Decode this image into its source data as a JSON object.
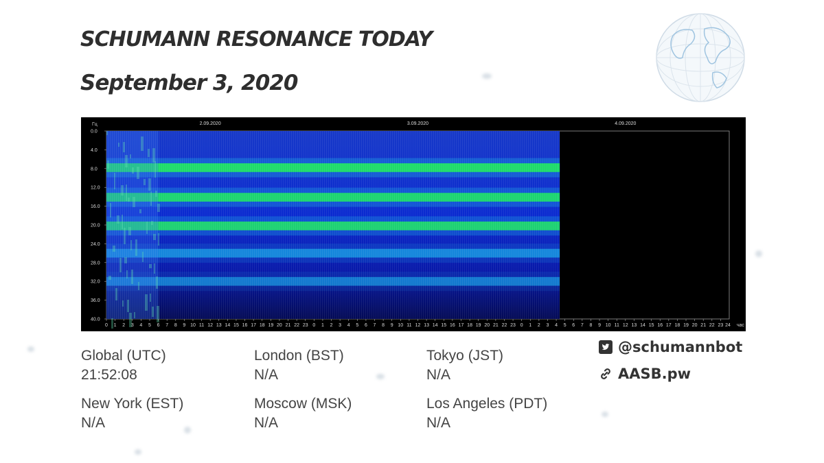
{
  "header": {
    "title": "SCHUMANN RESONANCE TODAY",
    "date": "September 3, 2020"
  },
  "timezones": [
    {
      "label": "Global (UTC)",
      "value": "21:52:08"
    },
    {
      "label": "London (BST)",
      "value": "N/A"
    },
    {
      "label": "Tokyo (JST)",
      "value": "N/A"
    },
    {
      "label": "New York (EST)",
      "value": "N/A"
    },
    {
      "label": "Moscow (MSK)",
      "value": "N/A"
    },
    {
      "label": "Los Angeles (PDT)",
      "value": "N/A"
    }
  ],
  "social": {
    "twitter_handle": "@schumannbot",
    "twitter_icon": "twitter-icon",
    "website": "AASB.pw",
    "website_icon": "link-icon"
  },
  "colors": {
    "chart_background": "#000000",
    "spectrogram_base": "#0a18b8",
    "resonance_band": "#1edc6a",
    "text": "#3a3a3a"
  },
  "chart_data": {
    "type": "heatmap",
    "ylabel": "Гц",
    "xlabel": "час",
    "y_ticks": [
      "0.0",
      "4.0",
      "8.0",
      "12.0",
      "16.0",
      "20.0",
      "24.0",
      "28.0",
      "32.0",
      "36.0",
      "40.0"
    ],
    "ylim": [
      0,
      40
    ],
    "date_labels": [
      "2.09.2020",
      "3.09.2020",
      "4.09.2020"
    ],
    "x_ticks_per_day": [
      "0",
      "1",
      "2",
      "3",
      "4",
      "5",
      "6",
      "7",
      "8",
      "9",
      "10",
      "11",
      "12",
      "13",
      "14",
      "15",
      "16",
      "17",
      "18",
      "19",
      "20",
      "21",
      "22",
      "23"
    ],
    "x_final_tick": "24",
    "days": 3,
    "data_end_hours": 52.4,
    "noisy_until_hours": 6,
    "resonance_bands_hz": [
      {
        "freq": 7.8,
        "intensity": 1.0
      },
      {
        "freq": 14.1,
        "intensity": 0.9
      },
      {
        "freq": 20.2,
        "intensity": 0.85
      },
      {
        "freq": 26.0,
        "intensity": 0.45
      },
      {
        "freq": 32.0,
        "intensity": 0.3
      }
    ],
    "grid": false
  }
}
